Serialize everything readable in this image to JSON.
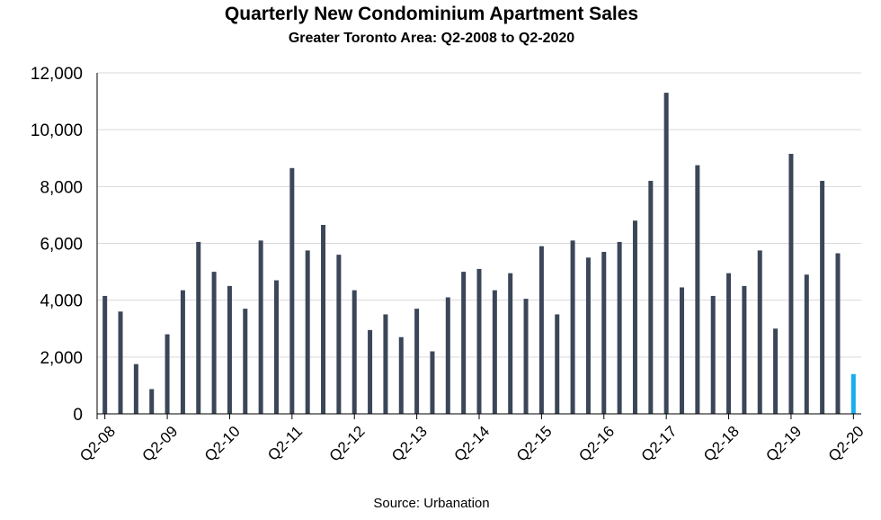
{
  "chart_data": {
    "type": "bar",
    "title": "Quarterly New Condominium Apartment Sales",
    "subtitle": "Greater Toronto Area: Q2-2008 to Q2-2020",
    "xlabel": "",
    "ylabel": "",
    "ylim": [
      0,
      12000
    ],
    "yticks": [
      "0",
      "2,000",
      "4,000",
      "6,000",
      "8,000",
      "10,000",
      "12,000"
    ],
    "grid": true,
    "legend": "none",
    "source": "Source: Urbanation",
    "categories": [
      "Q2-08",
      "Q3-08",
      "Q4-08",
      "Q1-09",
      "Q2-09",
      "Q3-09",
      "Q4-09",
      "Q1-10",
      "Q2-10",
      "Q3-10",
      "Q4-10",
      "Q1-11",
      "Q2-11",
      "Q3-11",
      "Q4-11",
      "Q1-12",
      "Q2-12",
      "Q3-12",
      "Q4-12",
      "Q1-13",
      "Q2-13",
      "Q3-13",
      "Q4-13",
      "Q1-14",
      "Q2-14",
      "Q3-14",
      "Q4-14",
      "Q1-15",
      "Q2-15",
      "Q3-15",
      "Q4-15",
      "Q1-16",
      "Q2-16",
      "Q3-16",
      "Q4-16",
      "Q1-17",
      "Q2-17",
      "Q3-17",
      "Q4-17",
      "Q1-18",
      "Q2-18",
      "Q3-18",
      "Q4-18",
      "Q1-19",
      "Q2-19",
      "Q3-19",
      "Q4-19",
      "Q1-20",
      "Q2-20"
    ],
    "tick_labels": [
      "Q2-08",
      "Q2-09",
      "Q2-10",
      "Q2-11",
      "Q2-12",
      "Q2-13",
      "Q2-14",
      "Q2-15",
      "Q2-16",
      "Q2-17",
      "Q2-18",
      "Q2-19",
      "Q2-20"
    ],
    "values": [
      4150,
      3600,
      1750,
      870,
      2800,
      4350,
      6050,
      5000,
      4500,
      3700,
      6100,
      4700,
      8650,
      5750,
      6650,
      5600,
      4350,
      2950,
      3500,
      2700,
      3700,
      2200,
      4100,
      5000,
      5100,
      4350,
      4950,
      4050,
      5900,
      3500,
      6100,
      5500,
      5700,
      6050,
      6800,
      8200,
      11300,
      4450,
      8750,
      4150,
      4950,
      4500,
      5750,
      3000,
      9150,
      4900,
      8200,
      5650,
      1400
    ],
    "colors": {
      "bar": "#3b4658",
      "highlight": "#17aef0",
      "grid": "#d9d9d9",
      "axis": "#000000"
    },
    "highlight_last": true
  }
}
